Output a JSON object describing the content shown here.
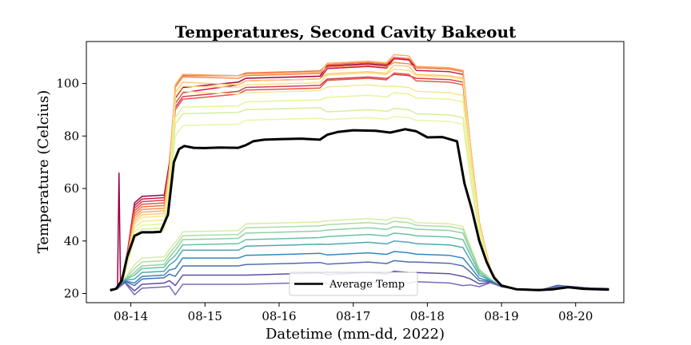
{
  "chart_data": {
    "type": "line",
    "title": "Temperatures, Second Cavity Bakeout",
    "xlabel": "Datetime (mm-dd, 2022)",
    "ylabel": "Temperature (Celcius)",
    "x_ticks": [
      "08-14",
      "08-15",
      "08-16",
      "08-17",
      "08-18",
      "08-19",
      "08-20"
    ],
    "x_tick_values": [
      14,
      15,
      16,
      17,
      18,
      19,
      20
    ],
    "y_ticks": [
      20,
      40,
      60,
      80,
      100
    ],
    "xlim": [
      13.4,
      20.65
    ],
    "ylim": [
      16.5,
      116
    ],
    "grid": false,
    "legend": {
      "location": "lower center",
      "entries": [
        "Average Temp"
      ]
    },
    "x_days": [
      13.72,
      13.8,
      13.88,
      13.95,
      14.05,
      14.15,
      14.3,
      14.4,
      14.5,
      14.58,
      14.65,
      14.72,
      14.85,
      15.0,
      15.2,
      15.45,
      15.55,
      15.65,
      15.8,
      16.0,
      16.3,
      16.55,
      16.65,
      16.8,
      17.0,
      17.3,
      17.5,
      17.7,
      17.85,
      18.0,
      18.2,
      18.4,
      18.5,
      18.6,
      18.7,
      18.8,
      18.9,
      19.0,
      19.2,
      19.5,
      19.7,
      19.9,
      20.1,
      20.3,
      20.45
    ],
    "average": [
      21.2,
      21.8,
      25,
      34,
      42,
      43.3,
      43.3,
      43.5,
      50,
      70,
      75,
      76.2,
      75.5,
      75.4,
      75.6,
      75.5,
      76.5,
      78,
      78.6,
      78.8,
      79.0,
      78.6,
      80.5,
      81.6,
      82.2,
      82.0,
      81.3,
      82.6,
      81.8,
      79.5,
      79.6,
      78.0,
      62.0,
      52.0,
      40.0,
      32.0,
      26.0,
      23.0,
      21.6,
      21.3,
      21.6,
      22.4,
      21.8,
      21.6,
      21.5
    ],
    "series": [
      {
        "color": "#9e0142",
        "plateau": 57.5,
        "high": [
          98.5,
          100.5,
          102.5,
          107.5,
          109.5,
          105.5
        ]
      },
      {
        "color": "#c51f4a",
        "plateau": 56.5,
        "high": [
          96.5,
          99.5,
          101.5,
          106.5,
          109.5,
          104.5
        ]
      },
      {
        "color": "#d53e4f",
        "plateau": 55.5,
        "high": [
          95.0,
          97.0,
          99.0,
          102.5,
          103.5,
          101.5
        ]
      },
      {
        "color": "#e5554a",
        "plateau": 54.5,
        "high": [
          94.0,
          96.0,
          98.0,
          102.0,
          104.0,
          100.5
        ]
      },
      {
        "color": "#f46d43",
        "plateau": 53.5,
        "high": [
          103.0,
          103.0,
          104.5,
          108.0,
          110.0,
          106.0
        ]
      },
      {
        "color": "#f88d52",
        "plateau": 52.5,
        "high": [
          102.5,
          102.0,
          103.5,
          107.0,
          108.0,
          105.5
        ]
      },
      {
        "color": "#fdae61",
        "plateau": 51.5,
        "high": [
          103.5,
          103.0,
          104.0,
          108.5,
          111.0,
          106.0
        ]
      },
      {
        "color": "#fec97a",
        "plateau": 50.5,
        "high": [
          100.5,
          99.5,
          101.5,
          104.5,
          107.0,
          103.0
        ]
      },
      {
        "color": "#fee08b",
        "plateau": 49.5,
        "high": [
          99.0,
          98.5,
          100.0,
          104.0,
          105.5,
          102.5
        ]
      },
      {
        "color": "#f2ea91",
        "plateau": 48.0,
        "high": [
          97.0,
          96.0,
          97.0,
          99.5,
          99.0,
          96.5
        ]
      },
      {
        "color": "#e6f598",
        "plateau": 46.5,
        "high": [
          91.0,
          91.5,
          93.5,
          95.5,
          96.5,
          94.0
        ]
      },
      {
        "color": "#d6ee9b",
        "plateau": 45.0,
        "high": [
          88.5,
          89.0,
          90.5,
          90.0,
          90.5,
          88.0
        ]
      },
      {
        "color": "#ecf4a4",
        "plateau": 44.0,
        "high": [
          84.0,
          84.5,
          86.5,
          87.0,
          87.5,
          85.5
        ]
      },
      {
        "color": "#d8eca6",
        "plateau": 34.0,
        "high": [
          43.5,
          44.0,
          47.0,
          48.5,
          49.0,
          46.5
        ]
      },
      {
        "color": "#abdda4",
        "plateau": 32.5,
        "high": [
          42.0,
          42.5,
          45.5,
          47.0,
          47.5,
          45.5
        ]
      },
      {
        "color": "#8fd1a4",
        "plateau": 31.0,
        "high": [
          40.5,
          41.0,
          43.5,
          45.0,
          45.5,
          44.0
        ]
      },
      {
        "color": "#66c2a5",
        "plateau": 30.0,
        "high": [
          38.5,
          39.0,
          41.0,
          42.5,
          43.0,
          41.5
        ]
      },
      {
        "color": "#4fa8af",
        "plateau": 28.5,
        "high": [
          36.5,
          36.5,
          38.5,
          39.5,
          40.0,
          38.5
        ]
      },
      {
        "color": "#3288bd",
        "plateau": 27.0,
        "high": [
          33.5,
          33.5,
          35.0,
          35.5,
          36.0,
          34.5
        ]
      },
      {
        "color": "#4e6fb0",
        "plateau": 26.0,
        "high": [
          30.5,
          30.5,
          31.5,
          32.0,
          32.5,
          31.5
        ]
      },
      {
        "color": "#5e4fa2",
        "plateau": 24.0,
        "high": [
          27.0,
          27.0,
          27.5,
          28.0,
          28.5,
          27.5
        ]
      },
      {
        "color": "#7a6bb6",
        "plateau": 22.5,
        "high": [
          23.5,
          23.5,
          24.0,
          24.5,
          24.5,
          24.0
        ]
      }
    ]
  }
}
